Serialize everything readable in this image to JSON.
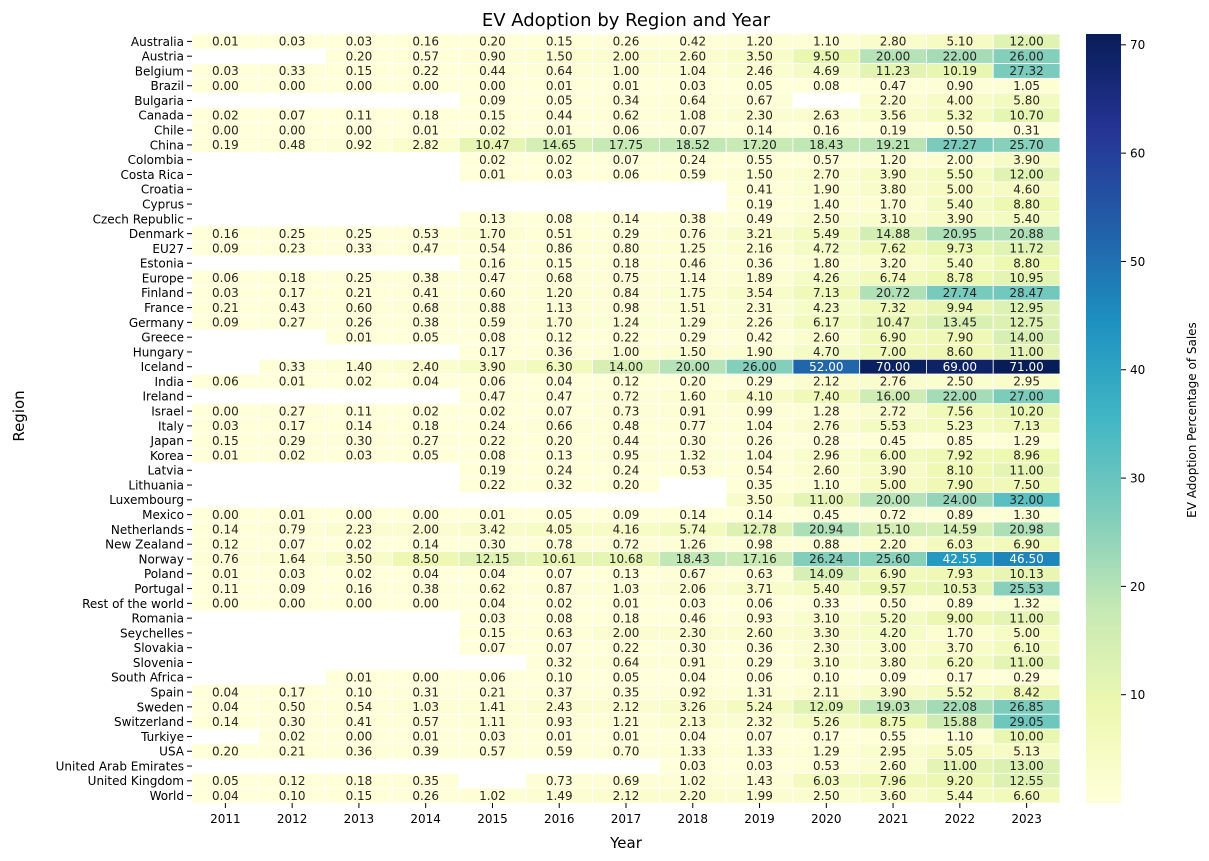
{
  "chart_data": {
    "type": "heatmap",
    "title": "EV Adoption by Region and Year",
    "xlabel": "Year",
    "ylabel": "Region",
    "colorbar_label": "EV Adoption Percentage of Sales",
    "colorbar_ticks": [
      10,
      20,
      30,
      40,
      50,
      60,
      70
    ],
    "value_range": [
      0,
      71
    ],
    "colormap": [
      "#ffffd9",
      "#edf8b1",
      "#c7e9b4",
      "#7fcdbb",
      "#41b6c4",
      "#1d91c0",
      "#225ea8",
      "#253494",
      "#081d58"
    ],
    "grid": false,
    "legend": "right",
    "years": [
      "2011",
      "2012",
      "2013",
      "2014",
      "2015",
      "2016",
      "2017",
      "2018",
      "2019",
      "2020",
      "2021",
      "2022",
      "2023"
    ],
    "regions": [
      "Australia",
      "Austria",
      "Belgium",
      "Brazil",
      "Bulgaria",
      "Canada",
      "Chile",
      "China",
      "Colombia",
      "Costa Rica",
      "Croatia",
      "Cyprus",
      "Czech Republic",
      "Denmark",
      "EU27",
      "Estonia",
      "Europe",
      "Finland",
      "France",
      "Germany",
      "Greece",
      "Hungary",
      "Iceland",
      "India",
      "Ireland",
      "Israel",
      "Italy",
      "Japan",
      "Korea",
      "Latvia",
      "Lithuania",
      "Luxembourg",
      "Mexico",
      "Netherlands",
      "New Zealand",
      "Norway",
      "Poland",
      "Portugal",
      "Rest of the world",
      "Romania",
      "Seychelles",
      "Slovakia",
      "Slovenia",
      "South Africa",
      "Spain",
      "Sweden",
      "Switzerland",
      "Turkiye",
      "USA",
      "United Arab Emirates",
      "United Kingdom",
      "World"
    ],
    "values": [
      [
        "0.01",
        "0.03",
        "0.03",
        "0.16",
        "0.20",
        "0.15",
        "0.26",
        "0.42",
        "1.20",
        "1.10",
        "2.80",
        "5.10",
        "12.00"
      ],
      [
        null,
        null,
        "0.20",
        "0.57",
        "0.90",
        "1.50",
        "2.00",
        "2.60",
        "3.50",
        "9.50",
        "20.00",
        "22.00",
        "26.00"
      ],
      [
        "0.03",
        "0.33",
        "0.15",
        "0.22",
        "0.44",
        "0.64",
        "1.00",
        "1.04",
        "2.46",
        "4.69",
        "11.23",
        "10.19",
        "27.32"
      ],
      [
        "0.00",
        "0.00",
        "0.00",
        "0.00",
        "0.00",
        "0.01",
        "0.01",
        "0.03",
        "0.05",
        "0.08",
        "0.47",
        "0.90",
        "1.05"
      ],
      [
        null,
        null,
        null,
        null,
        "0.09",
        "0.05",
        "0.34",
        "0.64",
        "0.67",
        null,
        "2.20",
        "4.00",
        "5.80"
      ],
      [
        "0.02",
        "0.07",
        "0.11",
        "0.18",
        "0.15",
        "0.44",
        "0.62",
        "1.08",
        "2.30",
        "2.63",
        "3.56",
        "5.32",
        "10.70"
      ],
      [
        "0.00",
        "0.00",
        "0.00",
        "0.01",
        "0.02",
        "0.01",
        "0.06",
        "0.07",
        "0.14",
        "0.16",
        "0.19",
        "0.50",
        "0.31"
      ],
      [
        "0.19",
        "0.48",
        "0.92",
        "2.82",
        "10.47",
        "14.65",
        "17.75",
        "18.52",
        "17.20",
        "18.43",
        "19.21",
        "27.27",
        "25.70"
      ],
      [
        null,
        null,
        null,
        null,
        "0.02",
        "0.02",
        "0.07",
        "0.24",
        "0.55",
        "0.57",
        "1.20",
        "2.00",
        "3.90"
      ],
      [
        null,
        null,
        null,
        null,
        "0.01",
        "0.03",
        "0.06",
        "0.59",
        "1.50",
        "2.70",
        "3.90",
        "5.50",
        "12.00"
      ],
      [
        null,
        null,
        null,
        null,
        null,
        null,
        null,
        null,
        "0.41",
        "1.90",
        "3.80",
        "5.00",
        "4.60"
      ],
      [
        null,
        null,
        null,
        null,
        null,
        null,
        null,
        null,
        "0.19",
        "1.40",
        "1.70",
        "5.40",
        "8.80"
      ],
      [
        null,
        null,
        null,
        null,
        "0.13",
        "0.08",
        "0.14",
        "0.38",
        "0.49",
        "2.50",
        "3.10",
        "3.90",
        "5.40"
      ],
      [
        "0.16",
        "0.25",
        "0.25",
        "0.53",
        "1.70",
        "0.51",
        "0.29",
        "0.76",
        "3.21",
        "5.49",
        "14.88",
        "20.95",
        "20.88"
      ],
      [
        "0.09",
        "0.23",
        "0.33",
        "0.47",
        "0.54",
        "0.86",
        "0.80",
        "1.25",
        "2.16",
        "4.72",
        "7.62",
        "9.73",
        "11.72"
      ],
      [
        null,
        null,
        null,
        null,
        "0.16",
        "0.15",
        "0.18",
        "0.46",
        "0.36",
        "1.80",
        "3.20",
        "5.40",
        "8.80"
      ],
      [
        "0.06",
        "0.18",
        "0.25",
        "0.38",
        "0.47",
        "0.68",
        "0.75",
        "1.14",
        "1.89",
        "4.26",
        "6.74",
        "8.78",
        "10.95"
      ],
      [
        "0.03",
        "0.17",
        "0.21",
        "0.41",
        "0.60",
        "1.20",
        "0.84",
        "1.75",
        "3.54",
        "7.13",
        "20.72",
        "27.74",
        "28.47"
      ],
      [
        "0.21",
        "0.43",
        "0.60",
        "0.68",
        "0.88",
        "1.13",
        "0.98",
        "1.51",
        "2.31",
        "4.23",
        "7.32",
        "9.94",
        "12.95"
      ],
      [
        "0.09",
        "0.27",
        "0.26",
        "0.38",
        "0.59",
        "1.70",
        "1.24",
        "1.29",
        "2.26",
        "6.17",
        "10.47",
        "13.45",
        "12.75"
      ],
      [
        null,
        null,
        "0.01",
        "0.05",
        "0.08",
        "0.12",
        "0.22",
        "0.29",
        "0.42",
        "2.60",
        "6.90",
        "7.90",
        "14.00"
      ],
      [
        null,
        null,
        null,
        null,
        "0.17",
        "0.36",
        "1.00",
        "1.50",
        "1.90",
        "4.70",
        "7.00",
        "8.60",
        "11.00"
      ],
      [
        null,
        "0.33",
        "1.40",
        "2.40",
        "3.90",
        "6.30",
        "14.00",
        "20.00",
        "26.00",
        "52.00",
        "70.00",
        "69.00",
        "71.00"
      ],
      [
        "0.06",
        "0.01",
        "0.02",
        "0.04",
        "0.06",
        "0.04",
        "0.12",
        "0.20",
        "0.29",
        "2.12",
        "2.76",
        "2.50",
        "2.95"
      ],
      [
        null,
        null,
        null,
        null,
        "0.47",
        "0.47",
        "0.72",
        "1.60",
        "4.10",
        "7.40",
        "16.00",
        "22.00",
        "27.00"
      ],
      [
        "0.00",
        "0.27",
        "0.11",
        "0.02",
        "0.02",
        "0.07",
        "0.73",
        "0.91",
        "0.99",
        "1.28",
        "2.72",
        "7.56",
        "10.20"
      ],
      [
        "0.03",
        "0.17",
        "0.14",
        "0.18",
        "0.24",
        "0.66",
        "0.48",
        "0.77",
        "1.04",
        "2.76",
        "5.53",
        "5.23",
        "7.13"
      ],
      [
        "0.15",
        "0.29",
        "0.30",
        "0.27",
        "0.22",
        "0.20",
        "0.44",
        "0.30",
        "0.26",
        "0.28",
        "0.45",
        "0.85",
        "1.29"
      ],
      [
        "0.01",
        "0.02",
        "0.03",
        "0.05",
        "0.08",
        "0.13",
        "0.95",
        "1.32",
        "1.04",
        "2.96",
        "6.00",
        "7.92",
        "8.96"
      ],
      [
        null,
        null,
        null,
        null,
        "0.19",
        "0.24",
        "0.24",
        "0.53",
        "0.54",
        "2.60",
        "3.90",
        "8.10",
        "11.00"
      ],
      [
        null,
        null,
        null,
        null,
        "0.22",
        "0.32",
        "0.20",
        null,
        "0.35",
        "1.10",
        "5.00",
        "7.90",
        "7.50"
      ],
      [
        null,
        null,
        null,
        null,
        null,
        null,
        null,
        null,
        "3.50",
        "11.00",
        "20.00",
        "24.00",
        "32.00"
      ],
      [
        "0.00",
        "0.01",
        "0.00",
        "0.00",
        "0.01",
        "0.05",
        "0.09",
        "0.14",
        "0.14",
        "0.45",
        "0.72",
        "0.89",
        "1.30"
      ],
      [
        "0.14",
        "0.79",
        "2.23",
        "2.00",
        "3.42",
        "4.05",
        "4.16",
        "5.74",
        "12.78",
        "20.94",
        "15.10",
        "14.59",
        "20.98"
      ],
      [
        "0.12",
        "0.07",
        "0.02",
        "0.14",
        "0.30",
        "0.78",
        "0.72",
        "1.26",
        "0.98",
        "0.88",
        "2.20",
        "6.03",
        "6.90"
      ],
      [
        "0.76",
        "1.64",
        "3.50",
        "8.50",
        "12.15",
        "10.61",
        "10.68",
        "18.43",
        "17.16",
        "26.24",
        "25.60",
        "42.55",
        "46.50"
      ],
      [
        "0.01",
        "0.03",
        "0.02",
        "0.04",
        "0.04",
        "0.07",
        "0.13",
        "0.67",
        "0.63",
        "14.09",
        "6.90",
        "7.93",
        "10.13"
      ],
      [
        "0.11",
        "0.09",
        "0.16",
        "0.38",
        "0.62",
        "0.87",
        "1.03",
        "2.06",
        "3.71",
        "5.40",
        "9.57",
        "10.53",
        "25.53"
      ],
      [
        "0.00",
        "0.00",
        "0.00",
        "0.00",
        "0.04",
        "0.02",
        "0.01",
        "0.03",
        "0.06",
        "0.33",
        "0.50",
        "0.89",
        "1.32"
      ],
      [
        null,
        null,
        null,
        null,
        "0.03",
        "0.08",
        "0.18",
        "0.46",
        "0.93",
        "3.10",
        "5.20",
        "9.00",
        "11.00"
      ],
      [
        null,
        null,
        null,
        null,
        "0.15",
        "0.63",
        "2.00",
        "2.30",
        "2.60",
        "3.30",
        "4.20",
        "1.70",
        "5.00"
      ],
      [
        null,
        null,
        null,
        null,
        "0.07",
        "0.07",
        "0.22",
        "0.30",
        "0.36",
        "2.30",
        "3.00",
        "3.70",
        "6.10"
      ],
      [
        null,
        null,
        null,
        null,
        null,
        "0.32",
        "0.64",
        "0.91",
        "0.29",
        "3.10",
        "3.80",
        "6.20",
        "11.00"
      ],
      [
        null,
        null,
        "0.01",
        "0.00",
        "0.06",
        "0.10",
        "0.05",
        "0.04",
        "0.06",
        "0.10",
        "0.09",
        "0.17",
        "0.29"
      ],
      [
        "0.04",
        "0.17",
        "0.10",
        "0.31",
        "0.21",
        "0.37",
        "0.35",
        "0.92",
        "1.31",
        "2.11",
        "3.90",
        "5.52",
        "8.42"
      ],
      [
        "0.04",
        "0.50",
        "0.54",
        "1.03",
        "1.41",
        "2.43",
        "2.12",
        "3.26",
        "5.24",
        "12.09",
        "19.03",
        "22.08",
        "26.85"
      ],
      [
        "0.14",
        "0.30",
        "0.41",
        "0.57",
        "1.11",
        "0.93",
        "1.21",
        "2.13",
        "2.32",
        "5.26",
        "8.75",
        "15.88",
        "29.05"
      ],
      [
        null,
        "0.02",
        "0.00",
        "0.01",
        "0.03",
        "0.01",
        "0.01",
        "0.04",
        "0.07",
        "0.17",
        "0.55",
        "1.10",
        "10.00"
      ],
      [
        "0.20",
        "0.21",
        "0.36",
        "0.39",
        "0.57",
        "0.59",
        "0.70",
        "1.33",
        "1.33",
        "1.29",
        "2.95",
        "5.05",
        "5.13"
      ],
      [
        null,
        null,
        null,
        null,
        null,
        null,
        null,
        "0.03",
        "0.03",
        "0.53",
        "2.60",
        "11.00",
        "13.00"
      ],
      [
        "0.05",
        "0.12",
        "0.18",
        "0.35",
        null,
        "0.73",
        "0.69",
        "1.02",
        "1.43",
        "6.03",
        "7.96",
        "9.20",
        "12.55"
      ],
      [
        "0.04",
        "0.10",
        "0.15",
        "0.26",
        "1.02",
        "1.49",
        "2.12",
        "2.20",
        "1.99",
        "2.50",
        "3.60",
        "5.44",
        "6.60"
      ]
    ]
  }
}
